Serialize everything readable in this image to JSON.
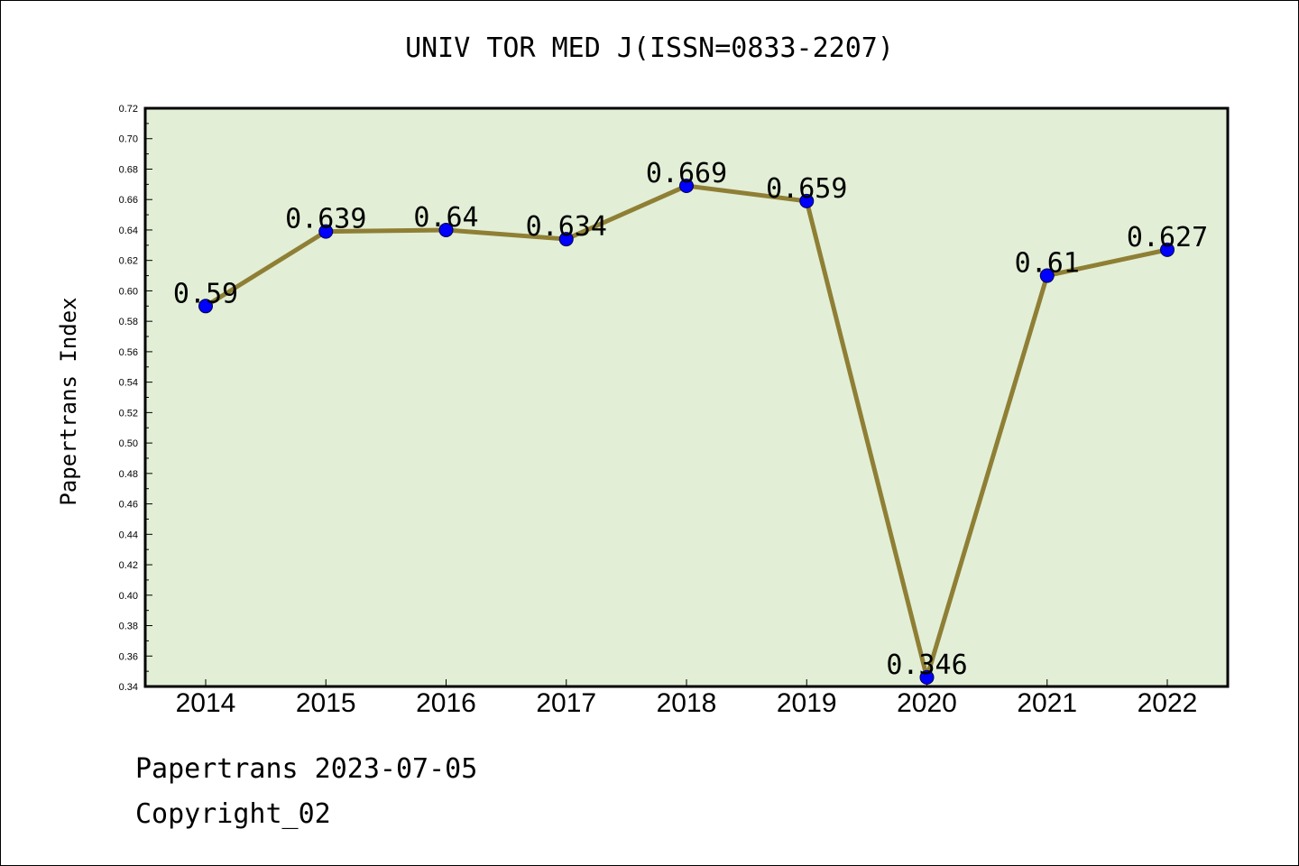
{
  "chart_data": {
    "type": "line",
    "title": "UNIV TOR MED J(ISSN=0833-2207)",
    "xlabel": "",
    "ylabel": "Papertrans Index",
    "categories": [
      "2014",
      "2015",
      "2016",
      "2017",
      "2018",
      "2019",
      "2020",
      "2021",
      "2022"
    ],
    "values": [
      0.59,
      0.639,
      0.64,
      0.634,
      0.669,
      0.659,
      0.346,
      0.61,
      0.627
    ],
    "data_labels": [
      "0.59",
      "0.639",
      "0.64",
      "0.634",
      "0.669",
      "0.659",
      "0.346",
      "0.61",
      "0.627"
    ],
    "ylim": [
      0.34,
      0.72
    ],
    "yticks": [
      "0.34",
      "0.36",
      "0.38",
      "0.40",
      "0.42",
      "0.44",
      "0.46",
      "0.48",
      "0.50",
      "0.52",
      "0.54",
      "0.56",
      "0.58",
      "0.60",
      "0.62",
      "0.64",
      "0.66",
      "0.68",
      "0.70",
      "0.72"
    ],
    "grid": false,
    "colors": {
      "plot_background": "#e2efd6",
      "line": "#8f7f35",
      "marker": "#0000ff"
    }
  },
  "footer": {
    "date_line": "Papertrans 2023-07-05",
    "copyright": "Copyright_02"
  }
}
